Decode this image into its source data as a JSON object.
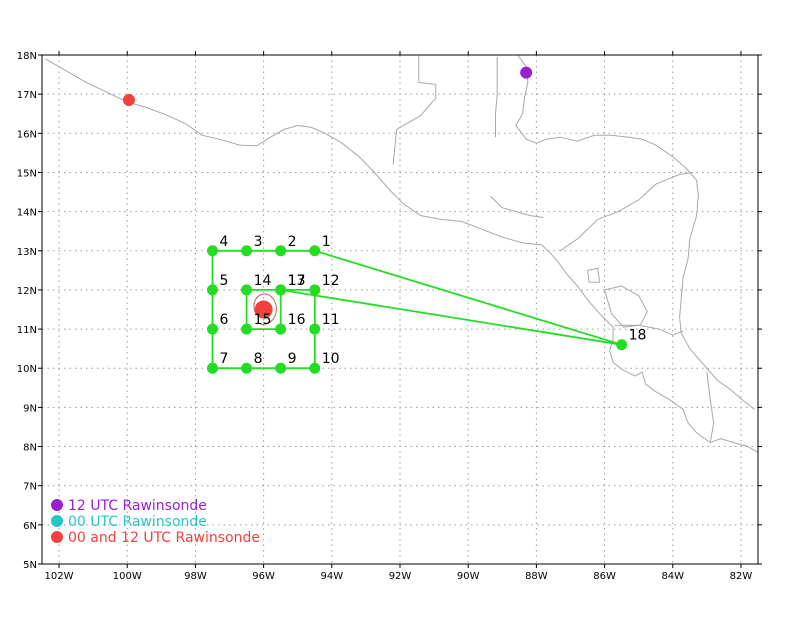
{
  "map": {
    "lon_range": [
      -102.5,
      -81.5
    ],
    "lat_range": [
      5,
      18
    ],
    "grid": "dotted",
    "lon_ticks": [
      {
        "value": -102,
        "label": "102W"
      },
      {
        "value": -100,
        "label": "100W"
      },
      {
        "value": -98,
        "label": "98W"
      },
      {
        "value": -96,
        "label": "96W"
      },
      {
        "value": -94,
        "label": "94W"
      },
      {
        "value": -92,
        "label": "92W"
      },
      {
        "value": -90,
        "label": "90W"
      },
      {
        "value": -88,
        "label": "88W"
      },
      {
        "value": -86,
        "label": "86W"
      },
      {
        "value": -84,
        "label": "84W"
      },
      {
        "value": -82,
        "label": "82W"
      }
    ],
    "lat_ticks": [
      {
        "value": 5,
        "label": "5N"
      },
      {
        "value": 6,
        "label": "6N"
      },
      {
        "value": 7,
        "label": "7N"
      },
      {
        "value": 8,
        "label": "8N"
      },
      {
        "value": 9,
        "label": "9N"
      },
      {
        "value": 10,
        "label": "10N"
      },
      {
        "value": 11,
        "label": "11N"
      },
      {
        "value": 12,
        "label": "12N"
      },
      {
        "value": 13,
        "label": "13N"
      },
      {
        "value": 14,
        "label": "14N"
      },
      {
        "value": 15,
        "label": "15N"
      },
      {
        "value": 16,
        "label": "16N"
      },
      {
        "value": 17,
        "label": "17N"
      },
      {
        "value": 18,
        "label": "18N"
      }
    ],
    "colors": {
      "coast": "#a8a8a8",
      "grid": "#9a9a9a",
      "flight": "#22dd22",
      "rawin_12": "#9a1fcf",
      "rawin_00": "#26c6c6",
      "rawin_both": "#f2403c",
      "storm_track": "#c8605a"
    }
  },
  "waypoints": [
    {
      "label": "1",
      "lon": -94.5,
      "lat": 13.0
    },
    {
      "label": "2",
      "lon": -95.5,
      "lat": 13.0
    },
    {
      "label": "3",
      "lon": -96.5,
      "lat": 13.0
    },
    {
      "label": "4",
      "lon": -97.5,
      "lat": 13.0
    },
    {
      "label": "5",
      "lon": -97.5,
      "lat": 12.0
    },
    {
      "label": "6",
      "lon": -97.5,
      "lat": 11.0
    },
    {
      "label": "7",
      "lon": -97.5,
      "lat": 10.0
    },
    {
      "label": "8",
      "lon": -96.5,
      "lat": 10.0
    },
    {
      "label": "9",
      "lon": -95.5,
      "lat": 10.0
    },
    {
      "label": "10",
      "lon": -94.5,
      "lat": 10.0
    },
    {
      "label": "11",
      "lon": -94.5,
      "lat": 11.0
    },
    {
      "label": "12",
      "lon": -94.5,
      "lat": 12.0
    },
    {
      "label": "13",
      "lon": -95.5,
      "lat": 12.0
    },
    {
      "label": "14",
      "lon": -96.5,
      "lat": 12.0
    },
    {
      "label": "15",
      "lon": -96.5,
      "lat": 11.0
    },
    {
      "label": "16",
      "lon": -95.5,
      "lat": 11.0
    },
    {
      "label": "17",
      "lon": -95.5,
      "lat": 12.0
    },
    {
      "label": "18",
      "lon": -85.5,
      "lat": 10.6
    }
  ],
  "flight_track": [
    [
      -85.5,
      10.6
    ],
    [
      -94.5,
      13.0
    ],
    [
      -95.5,
      13.0
    ],
    [
      -96.5,
      13.0
    ],
    [
      -97.5,
      13.0
    ],
    [
      -97.5,
      12.0
    ],
    [
      -97.5,
      11.0
    ],
    [
      -97.5,
      10.0
    ],
    [
      -96.5,
      10.0
    ],
    [
      -95.5,
      10.0
    ],
    [
      -94.5,
      10.0
    ],
    [
      -94.5,
      11.0
    ],
    [
      -94.5,
      12.0
    ],
    [
      -95.5,
      12.0
    ],
    [
      -96.5,
      12.0
    ],
    [
      -96.5,
      11.0
    ],
    [
      -95.5,
      11.0
    ],
    [
      -95.5,
      12.0
    ],
    [
      -85.5,
      10.6
    ]
  ],
  "storm_center": {
    "lon": -96.0,
    "lat": 11.5
  },
  "rawinsondes": [
    {
      "type": "12",
      "lon": -88.3,
      "lat": 17.55
    },
    {
      "type": "both",
      "lon": -99.95,
      "lat": 16.85
    }
  ],
  "legend": [
    {
      "type": "12",
      "label": "12 UTC Rawinsonde"
    },
    {
      "type": "00",
      "label": "00 UTC Rawinsonde"
    },
    {
      "type": "both",
      "label": "00 and 12 UTC Rawinsonde"
    }
  ]
}
